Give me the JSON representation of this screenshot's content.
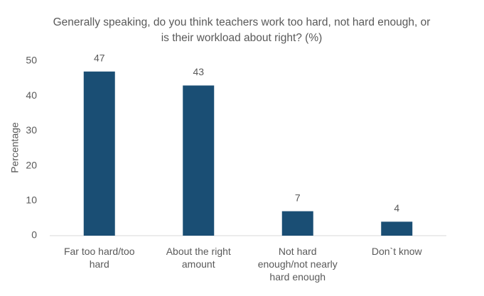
{
  "chart_data": {
    "type": "bar",
    "title": "Generally speaking, do you think teachers work too hard, not hard enough, or is their workload about right? (%)",
    "y_label": "Percentage",
    "categories": [
      "Far too hard/too hard",
      "About the right amount",
      "Not hard enough/not nearly hard enough",
      "Don`t know"
    ],
    "values": [
      47,
      43,
      7,
      4
    ],
    "color": "#1a4e74",
    "ylim": [
      0,
      50
    ],
    "yticks": [
      0,
      10,
      20,
      30,
      40,
      50
    ],
    "grid": false
  }
}
